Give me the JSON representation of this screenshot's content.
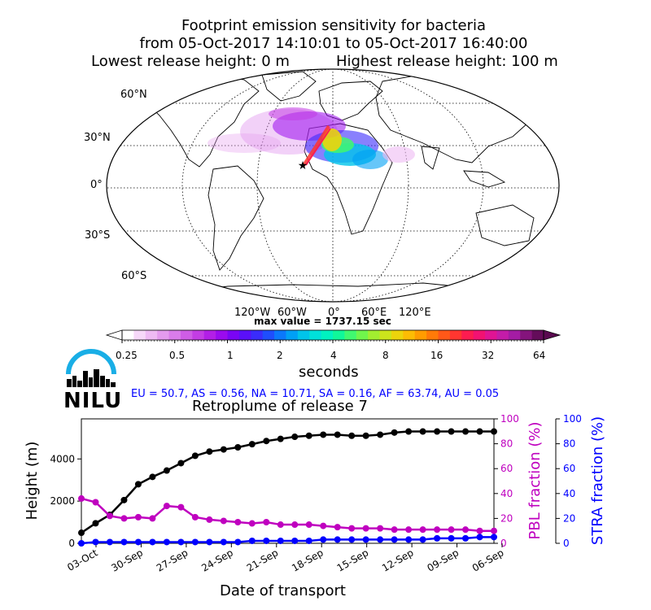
{
  "header": {
    "line1": "Footprint emission sensitivity for bacteria",
    "line2": "from 05-Oct-2017 14:10:01 to 05-Oct-2017 16:40:00",
    "line3_left": "Lowest release height: 0 m",
    "line3_right": "Highest release height: 100 m"
  },
  "map": {
    "lat_labels": [
      "60°N",
      "30°N",
      "0°",
      "30°S",
      "60°S"
    ],
    "lon_labels": [
      "120°W",
      "60°W",
      "0°",
      "60°E",
      "120°E"
    ],
    "max_value_text": "max value = 1737.15 sec"
  },
  "colorbar": {
    "ticks": [
      "0.25",
      "0.5",
      "1",
      "2",
      "4",
      "8",
      "16",
      "32",
      "64"
    ],
    "label": "seconds",
    "colors": [
      "#ffffff",
      "#f6d8f8",
      "#eebaf3",
      "#e49bee",
      "#da7cea",
      "#cf5de6",
      "#c33de4",
      "#b21fe6",
      "#9a0bee",
      "#7a05f4",
      "#5a10f8",
      "#3a2cfb",
      "#1f4efc",
      "#0b78fb",
      "#00a0f5",
      "#00c4ea",
      "#00e0da",
      "#00f2c0",
      "#10f79a",
      "#40f870",
      "#70f54c",
      "#a2ee30",
      "#cce41c",
      "#ecd40c",
      "#fcbc04",
      "#ff9c00",
      "#ff7a08",
      "#ff5818",
      "#ff3630",
      "#fc1c50",
      "#f21272",
      "#e01494",
      "#c41ca8",
      "#a41ca4",
      "#84147c",
      "#640c5a"
    ],
    "under_color": "#ffffff",
    "over_color": "#5a0a50"
  },
  "logo": {
    "text": "NILU",
    "arc_color": "#19aee6"
  },
  "fractions_line": "EU = 50.7,  AS = 0.56,  NA = 10.71,  SA = 0.16,  AF = 63.74,  AU = 0.05",
  "timeseries": {
    "title": "Retroplume of release 7",
    "xlabel": "Date of transport",
    "ylabel_left": "Height (m)",
    "ylabel_pbl": "PBL fraction (%)",
    "ylabel_stra": "STRA fraction (%)",
    "left_ticks": [
      "0",
      "2000",
      "4000"
    ],
    "pbl_ticks": [
      "0",
      "20",
      "40",
      "60",
      "80",
      "100"
    ],
    "stra_ticks": [
      "0",
      "20",
      "40",
      "60",
      "80",
      "100"
    ],
    "x_ticks": [
      "03-Oct",
      "30-Sep",
      "27-Sep",
      "24-Sep",
      "21-Sep",
      "18-Sep",
      "15-Sep",
      "12-Sep",
      "09-Sep",
      "06-Sep"
    ],
    "pbl_color": "#bf00bf",
    "stra_color": "#0000ff"
  },
  "chart_data": {
    "type": "line",
    "title": "Retroplume of release 7",
    "xlabel": "Date of transport",
    "ylabel": "Height (m)",
    "x": [
      "05-Oct",
      "04-Oct",
      "03-Oct",
      "02-Oct",
      "01-Oct",
      "30-Sep",
      "29-Sep",
      "28-Sep",
      "27-Sep",
      "26-Sep",
      "25-Sep",
      "24-Sep",
      "23-Sep",
      "22-Sep",
      "21-Sep",
      "20-Sep",
      "19-Sep",
      "18-Sep",
      "17-Sep",
      "16-Sep",
      "15-Sep",
      "14-Sep",
      "13-Sep",
      "12-Sep",
      "11-Sep",
      "10-Sep",
      "09-Sep",
      "08-Sep",
      "07-Sep",
      "06-Sep"
    ],
    "ylim": [
      0,
      5900
    ],
    "ylim_pbl": [
      0,
      100
    ],
    "ylim_stra": [
      0,
      100
    ],
    "series": [
      {
        "name": "Height (m)",
        "axis": "left",
        "color": "#000000",
        "values": [
          500,
          950,
          1350,
          2050,
          2800,
          3150,
          3450,
          3800,
          4150,
          4350,
          4450,
          4550,
          4700,
          4850,
          4950,
          5050,
          5100,
          5150,
          5150,
          5100,
          5100,
          5150,
          5250,
          5300,
          5300,
          5300,
          5300,
          5300,
          5300,
          5300
        ]
      },
      {
        "name": "PBL fraction (%)",
        "axis": "pbl",
        "color": "#bf00bf",
        "values": [
          36,
          33,
          22,
          20,
          21,
          20,
          30,
          29,
          21,
          19,
          18,
          17,
          16,
          17,
          15,
          15,
          15,
          14,
          13,
          12,
          12,
          12,
          11,
          11,
          11,
          11,
          11,
          11,
          10,
          10
        ]
      },
      {
        "name": "STRA fraction (%)",
        "axis": "stra",
        "color": "#0000ff",
        "values": [
          0,
          1,
          1,
          1,
          1,
          1,
          1,
          1,
          1,
          1,
          1,
          1,
          2,
          2,
          2,
          2,
          2,
          3,
          3,
          3,
          3,
          3,
          3,
          3,
          3,
          4,
          4,
          4,
          5,
          5
        ]
      }
    ]
  }
}
